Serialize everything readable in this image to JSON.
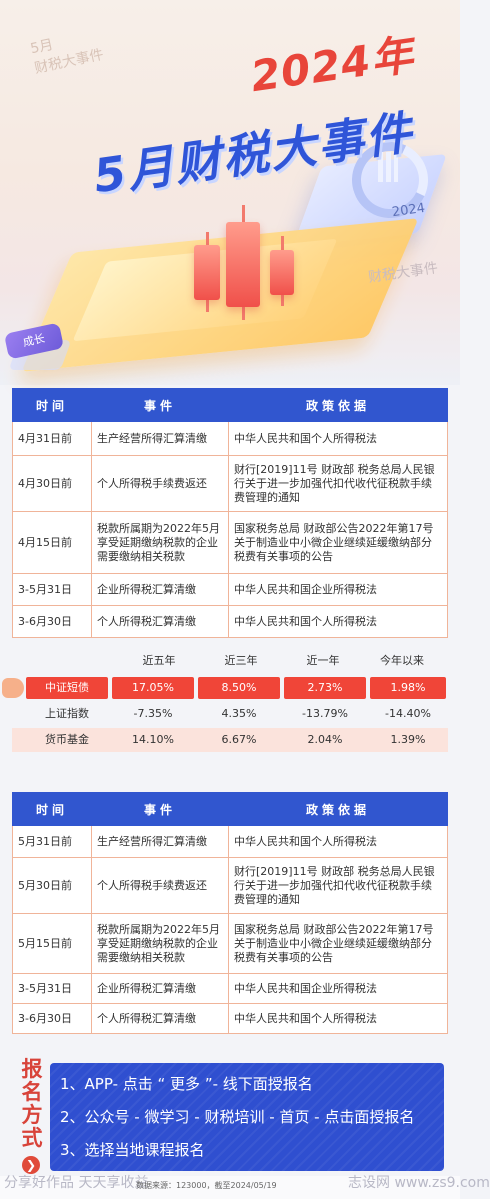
{
  "hero": {
    "watermark_top": [
      "5月",
      "财税大事件"
    ],
    "title_year": "2024年",
    "title_main": "5月财税大事件",
    "cube_label": "2024",
    "watermark_right": "财税大事件",
    "pill_label": "成长"
  },
  "table1": {
    "headers": [
      "时间",
      "事件",
      "政策依据"
    ],
    "rows": [
      {
        "date": "4月31日前",
        "event": "生产经营所得汇算清缴",
        "policy": "中华人民共和国个人所得税法"
      },
      {
        "date": "4月30日前",
        "event": "个人所得税手续费返还",
        "policy": "财行[2019]11号 财政部 税务总局人民银行关于进一步加强代扣代收代征税款手续费管理的通知"
      },
      {
        "date": "4月15日前",
        "event": "税款所属期为2022年5月享受延期缴纳税款的企业需要缴纳相关税款",
        "policy": "国家税务总局 财政部公告2022年第17号关于制造业中小微企业继续延缓缴纳部分税费有关事项的公告"
      },
      {
        "date": "3-5月31日",
        "event": "企业所得税汇算清缴",
        "policy": "中华人民共和国企业所得税法"
      },
      {
        "date": "3-6月30日",
        "event": "个人所得税汇算清缴",
        "policy": "中华人民共和国个人所得税法"
      }
    ]
  },
  "returns": {
    "columns": [
      "近五年",
      "近三年",
      "近一年",
      "今年以来"
    ],
    "rows": [
      {
        "name": "中证短债",
        "values": [
          "17.05%",
          "8.50%",
          "2.73%",
          "1.98%"
        ],
        "highlight": true
      },
      {
        "name": "上证指数",
        "values": [
          "-7.35%",
          "4.35%",
          "-13.79%",
          "-14.40%"
        ],
        "highlight": false
      },
      {
        "name": "货币基金",
        "values": [
          "14.10%",
          "6.67%",
          "2.04%",
          "1.39%"
        ],
        "highlight": false
      }
    ]
  },
  "table2": {
    "headers": [
      "时间",
      "事件",
      "政策依据"
    ],
    "rows": [
      {
        "date": "5月31日前",
        "event": "生产经营所得汇算清缴",
        "policy": "中华人民共和国个人所得税法"
      },
      {
        "date": "5月30日前",
        "event": "个人所得税手续费返还",
        "policy": "财行[2019]11号 财政部 税务总局人民银行关于进一步加强代扣代收代征税款手续费管理的通知"
      },
      {
        "date": "5月15日前",
        "event": "税款所属期为2022年5月享受延期缴纳税款的企业需要缴纳相关税款",
        "policy": "国家税务总局 财政部公告2022年第17号关于制造业中小微企业继续延缓缴纳部分税费有关事项的公告"
      },
      {
        "date": "3-5月31日",
        "event": "企业所得税汇算清缴",
        "policy": "中华人民共和国企业所得税法"
      },
      {
        "date": "3-6月30日",
        "event": "个人所得税汇算清缴",
        "policy": "中华人民共和国个人所得税法"
      }
    ]
  },
  "signup": {
    "side_label": [
      "报",
      "名",
      "方",
      "式"
    ],
    "arrow_icon": "arrow-right-icon",
    "lines": [
      "1、APP- 点击 “ 更多 ”- 线下面授报名",
      "2、公众号 - 微学习 - 财税培训 - 首页 - 点击面授报名",
      "3、选择当地课程报名"
    ]
  },
  "footer": {
    "share": "分享好作品 天天享收益",
    "source": "数据来源：123000，截至2024/05/19",
    "site": "志设网 www.zs9.com"
  },
  "colors": {
    "accent_blue": "#3156cf",
    "accent_red": "#f04538",
    "table_border": "#f0b499"
  }
}
